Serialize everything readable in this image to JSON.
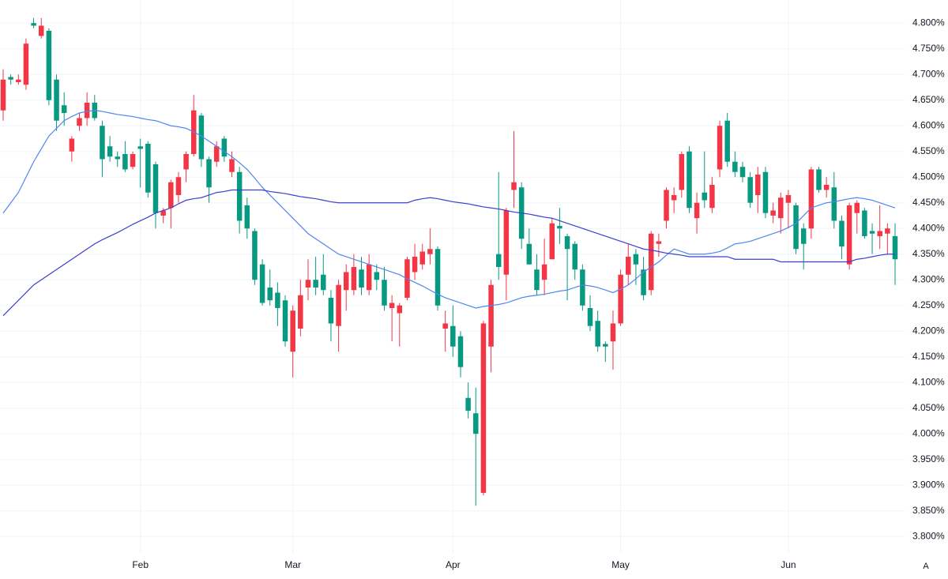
{
  "chart_data": {
    "type": "candlestick",
    "categories": [
      null,
      null,
      null,
      null,
      null,
      null,
      null,
      null,
      null,
      null,
      null,
      null,
      null,
      null,
      null,
      null,
      null,
      null,
      "Feb",
      null,
      null,
      null,
      null,
      null,
      null,
      null,
      null,
      null,
      null,
      null,
      null,
      null,
      null,
      null,
      null,
      null,
      null,
      null,
      "Mar",
      null,
      null,
      null,
      null,
      null,
      null,
      null,
      null,
      null,
      null,
      null,
      null,
      null,
      null,
      null,
      null,
      null,
      null,
      null,
      null,
      "Apr",
      null,
      null,
      null,
      null,
      null,
      null,
      null,
      null,
      null,
      null,
      null,
      null,
      null,
      null,
      null,
      null,
      null,
      null,
      null,
      null,
      null,
      "May",
      null,
      null,
      null,
      null,
      null,
      null,
      null,
      null,
      null,
      null,
      null,
      null,
      null,
      null,
      null,
      null,
      null,
      null,
      null,
      null,
      null,
      "Jun",
      null,
      null,
      null,
      null,
      null,
      null,
      null,
      null,
      null,
      null,
      null,
      null,
      null,
      null
    ],
    "candles": {
      "up_color": "#f23645",
      "down_color": "#089981",
      "open": [
        4.63,
        4.695,
        4.685,
        4.68,
        4.8,
        4.775,
        4.785,
        4.69,
        4.64,
        4.55,
        4.6,
        4.615,
        4.645,
        4.6,
        4.56,
        4.54,
        4.545,
        4.52,
        4.56,
        4.565,
        4.525,
        4.425,
        4.44,
        4.465,
        4.515,
        4.545,
        4.62,
        4.535,
        4.53,
        4.575,
        4.51,
        4.51,
        4.445,
        4.395,
        4.33,
        4.285,
        4.275,
        4.26,
        4.16,
        4.205,
        4.285,
        4.3,
        4.31,
        4.265,
        4.21,
        4.28,
        4.28,
        4.32,
        4.28,
        4.315,
        4.3,
        4.245,
        4.235,
        4.265,
        4.315,
        4.33,
        4.35,
        4.36,
        4.205,
        4.21,
        4.19,
        4.07,
        4.04,
        3.885,
        4.17,
        4.35,
        4.31,
        4.475,
        4.48,
        4.37,
        4.32,
        4.3,
        4.34,
        4.405,
        4.385,
        4.37,
        4.32,
        4.245,
        4.22,
        4.175,
        4.18,
        4.215,
        4.31,
        4.35,
        4.32,
        4.28,
        4.37,
        4.415,
        4.455,
        4.475,
        4.55,
        4.42,
        4.47,
        4.44,
        4.515,
        4.61,
        4.53,
        4.52,
        4.5,
        4.465,
        4.51,
        4.425,
        4.42,
        4.45,
        4.445,
        4.4,
        4.4,
        4.515,
        4.475,
        4.48,
        4.415,
        4.33,
        4.43,
        4.435,
        4.395,
        4.385,
        4.39,
        4.385
      ],
      "high": [
        4.71,
        4.7,
        4.7,
        4.77,
        4.81,
        4.81,
        4.79,
        4.7,
        4.665,
        4.58,
        4.625,
        4.665,
        4.66,
        4.61,
        4.58,
        4.55,
        4.57,
        4.55,
        4.575,
        4.57,
        4.53,
        4.44,
        4.495,
        4.51,
        4.55,
        4.66,
        4.625,
        4.54,
        4.57,
        4.58,
        4.55,
        4.52,
        4.46,
        4.4,
        4.34,
        4.32,
        4.295,
        4.27,
        4.25,
        4.3,
        4.34,
        4.345,
        4.35,
        4.28,
        4.3,
        4.33,
        4.35,
        4.345,
        4.35,
        4.33,
        4.325,
        4.27,
        4.255,
        4.345,
        4.37,
        4.37,
        4.4,
        4.365,
        4.24,
        4.25,
        4.2,
        4.1,
        4.09,
        4.22,
        4.3,
        4.51,
        4.44,
        4.59,
        4.49,
        4.4,
        4.35,
        4.38,
        4.42,
        4.44,
        4.39,
        4.375,
        4.33,
        4.27,
        4.24,
        4.18,
        4.24,
        4.32,
        4.37,
        4.36,
        4.345,
        4.395,
        4.39,
        4.48,
        4.48,
        4.55,
        4.56,
        4.47,
        4.55,
        4.5,
        4.61,
        4.625,
        4.55,
        4.53,
        4.51,
        4.52,
        4.52,
        4.45,
        4.47,
        4.475,
        4.45,
        4.41,
        4.52,
        4.52,
        4.5,
        4.51,
        4.425,
        4.45,
        4.455,
        4.44,
        4.41,
        4.445,
        4.41,
        4.41
      ],
      "low": [
        4.61,
        4.68,
        4.68,
        4.67,
        4.79,
        4.77,
        4.64,
        4.59,
        4.6,
        4.53,
        4.59,
        4.6,
        4.61,
        4.5,
        4.53,
        4.52,
        4.51,
        4.515,
        4.48,
        4.46,
        4.4,
        4.41,
        4.4,
        4.45,
        4.49,
        4.54,
        4.52,
        4.45,
        4.52,
        4.53,
        4.5,
        4.39,
        4.38,
        4.29,
        4.25,
        4.25,
        4.21,
        4.17,
        4.11,
        4.19,
        4.26,
        4.27,
        4.27,
        4.18,
        4.16,
        4.24,
        4.27,
        4.27,
        4.27,
        4.28,
        4.24,
        4.18,
        4.17,
        4.26,
        4.3,
        4.32,
        4.33,
        4.24,
        4.16,
        4.15,
        4.11,
        4.03,
        3.86,
        3.88,
        4.12,
        4.3,
        4.26,
        4.44,
        4.36,
        4.33,
        4.27,
        4.27,
        4.34,
        4.37,
        4.26,
        4.3,
        4.24,
        4.2,
        4.16,
        4.14,
        4.125,
        4.21,
        4.29,
        4.29,
        4.26,
        4.27,
        4.345,
        4.4,
        4.43,
        4.46,
        4.43,
        4.39,
        4.44,
        4.43,
        4.5,
        4.52,
        4.5,
        4.49,
        4.44,
        4.43,
        4.42,
        4.41,
        4.39,
        4.4,
        4.35,
        4.32,
        4.38,
        4.47,
        4.46,
        4.4,
        4.34,
        4.32,
        4.39,
        4.38,
        4.35,
        4.36,
        4.35,
        4.29
      ],
      "close": [
        4.69,
        4.69,
        4.69,
        4.76,
        4.795,
        4.795,
        4.65,
        4.61,
        4.625,
        4.575,
        4.615,
        4.645,
        4.615,
        4.535,
        4.54,
        4.535,
        4.515,
        4.545,
        4.555,
        4.47,
        4.43,
        4.435,
        4.49,
        4.5,
        4.545,
        4.63,
        4.535,
        4.48,
        4.56,
        4.54,
        4.535,
        4.415,
        4.4,
        4.3,
        4.255,
        4.26,
        4.245,
        4.18,
        4.24,
        4.27,
        4.3,
        4.285,
        4.28,
        4.215,
        4.29,
        4.315,
        4.325,
        4.285,
        4.33,
        4.3,
        4.25,
        4.255,
        4.25,
        4.34,
        4.345,
        4.355,
        4.36,
        4.25,
        4.215,
        4.17,
        4.13,
        4.045,
        4.0,
        4.215,
        4.29,
        4.325,
        4.435,
        4.49,
        4.38,
        4.33,
        4.28,
        4.33,
        4.41,
        4.4,
        4.36,
        4.32,
        4.25,
        4.21,
        4.17,
        4.17,
        4.215,
        4.31,
        4.345,
        4.33,
        4.27,
        4.39,
        4.375,
        4.475,
        4.465,
        4.545,
        4.44,
        4.45,
        4.455,
        4.485,
        4.6,
        4.53,
        4.51,
        4.5,
        4.45,
        4.505,
        4.43,
        4.435,
        4.46,
        4.465,
        4.36,
        4.37,
        4.515,
        4.475,
        4.485,
        4.415,
        4.365,
        4.445,
        4.45,
        4.385,
        4.39,
        4.395,
        4.4,
        4.34
      ]
    },
    "lines": [
      {
        "color": "#4f86f0",
        "values": [
          4.43,
          4.45,
          4.47,
          4.5,
          4.53,
          4.555,
          4.58,
          4.595,
          4.61,
          4.618,
          4.625,
          4.628,
          4.63,
          4.628,
          4.625,
          4.622,
          4.62,
          4.618,
          4.615,
          4.612,
          4.61,
          4.605,
          4.6,
          4.598,
          4.595,
          4.588,
          4.58,
          4.57,
          4.56,
          4.55,
          4.54,
          4.528,
          4.515,
          4.498,
          4.48,
          4.465,
          4.45,
          4.435,
          4.42,
          4.405,
          4.39,
          4.38,
          4.37,
          4.36,
          4.35,
          4.345,
          4.34,
          4.335,
          4.33,
          4.325,
          4.32,
          4.315,
          4.31,
          4.302,
          4.295,
          4.288,
          4.28,
          4.272,
          4.265,
          4.26,
          4.255,
          4.25,
          4.245,
          4.248,
          4.25,
          4.252,
          4.255,
          4.26,
          4.265,
          4.268,
          4.27,
          4.272,
          4.275,
          4.278,
          4.28,
          4.285,
          4.29,
          4.288,
          4.285,
          4.28,
          4.275,
          4.282,
          4.29,
          4.302,
          4.315,
          4.325,
          4.335,
          4.348,
          4.36,
          4.355,
          4.35,
          4.35,
          4.35,
          4.352,
          4.355,
          4.362,
          4.37,
          4.372,
          4.375,
          4.38,
          4.385,
          4.39,
          4.395,
          4.402,
          4.41,
          4.425,
          4.44,
          4.445,
          4.45,
          4.452,
          4.455,
          4.458,
          4.46,
          4.458,
          4.455,
          4.45,
          4.445,
          4.44
        ]
      },
      {
        "color": "#3c3fd0",
        "values": [
          4.23,
          4.245,
          4.26,
          4.275,
          4.29,
          4.3,
          4.31,
          4.32,
          4.33,
          4.34,
          4.35,
          4.36,
          4.37,
          4.378,
          4.385,
          4.392,
          4.4,
          4.408,
          4.415,
          4.422,
          4.43,
          4.435,
          4.44,
          4.448,
          4.455,
          4.458,
          4.46,
          4.465,
          4.47,
          4.472,
          4.475,
          4.475,
          4.475,
          4.475,
          4.475,
          4.472,
          4.47,
          4.468,
          4.465,
          4.462,
          4.46,
          4.458,
          4.455,
          4.452,
          4.45,
          4.45,
          4.45,
          4.45,
          4.45,
          4.45,
          4.45,
          4.45,
          4.45,
          4.45,
          4.455,
          4.458,
          4.46,
          4.458,
          4.455,
          4.452,
          4.45,
          4.448,
          4.445,
          4.442,
          4.44,
          4.438,
          4.435,
          4.432,
          4.43,
          4.428,
          4.425,
          4.422,
          4.42,
          4.415,
          4.41,
          4.405,
          4.4,
          4.395,
          4.39,
          4.385,
          4.38,
          4.375,
          4.37,
          4.365,
          4.36,
          4.358,
          4.355,
          4.352,
          4.35,
          4.348,
          4.345,
          4.345,
          4.345,
          4.345,
          4.345,
          4.345,
          4.34,
          4.34,
          4.34,
          4.34,
          4.34,
          4.34,
          4.335,
          4.335,
          4.335,
          4.335,
          4.335,
          4.335,
          4.335,
          4.335,
          4.335,
          4.335,
          4.34,
          4.342,
          4.345,
          4.348,
          4.35,
          4.35
        ]
      }
    ],
    "ylim": [
      3.768,
      4.845
    ],
    "yticks": [
      {
        "value": 4.8,
        "label": "4.800%"
      },
      {
        "value": 4.75,
        "label": "4.750%"
      },
      {
        "value": 4.7,
        "label": "4.700%"
      },
      {
        "value": 4.65,
        "label": "4.650%"
      },
      {
        "value": 4.6,
        "label": "4.600%"
      },
      {
        "value": 4.55,
        "label": "4.550%"
      },
      {
        "value": 4.5,
        "label": "4.500%"
      },
      {
        "value": 4.45,
        "label": "4.450%"
      },
      {
        "value": 4.4,
        "label": "4.400%"
      },
      {
        "value": 4.35,
        "label": "4.350%"
      },
      {
        "value": 4.3,
        "label": "4.300%"
      },
      {
        "value": 4.25,
        "label": "4.250%"
      },
      {
        "value": 4.2,
        "label": "4.200%"
      },
      {
        "value": 4.15,
        "label": "4.150%"
      },
      {
        "value": 4.1,
        "label": "4.100%"
      },
      {
        "value": 4.05,
        "label": "4.050%"
      },
      {
        "value": 4.0,
        "label": "4.000%"
      },
      {
        "value": 3.95,
        "label": "3.950%"
      },
      {
        "value": 3.9,
        "label": "3.900%"
      },
      {
        "value": 3.85,
        "label": "3.850%"
      },
      {
        "value": 3.8,
        "label": "3.800%"
      }
    ],
    "grid": true,
    "auto_scale_label": "A"
  }
}
